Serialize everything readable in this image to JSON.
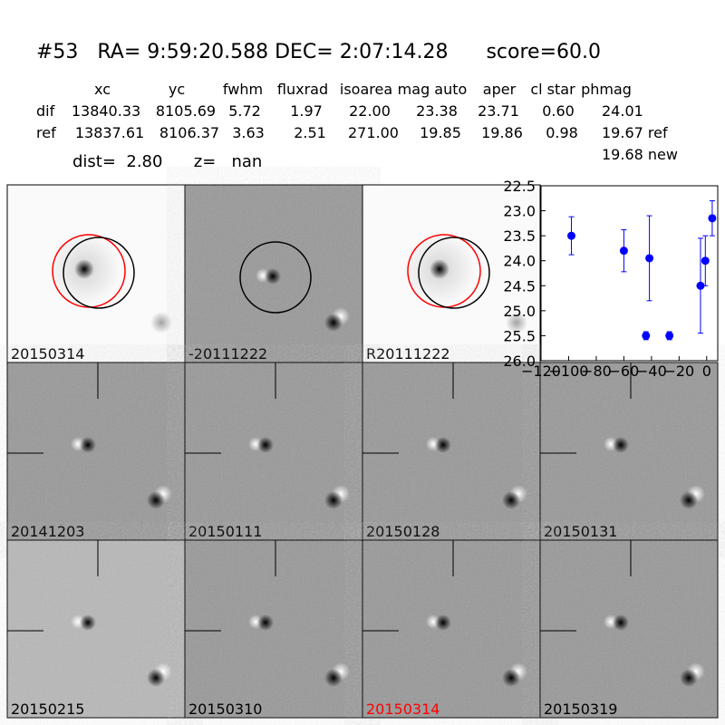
{
  "header": {
    "title": "#53   RA= 9:59:20.588 DEC= 2:07:14.28      score=60.0",
    "dist_line": "dist=  2.80      z=   nan"
  },
  "table": {
    "columns": [
      "xc",
      "yc",
      "fwhm",
      "fluxrad",
      "isoarea",
      "mag auto",
      "aper",
      "cl star",
      "phmag"
    ],
    "rows": [
      [
        "dif",
        "13840.33",
        "8105.69",
        "5.72",
        "1.97",
        "22.00",
        "23.38",
        "23.71",
        "0.60",
        "24.01"
      ],
      [
        "ref",
        "13837.61",
        "8106.37",
        "3.63",
        "2.51",
        "271.00",
        "19.85",
        "19.86",
        "0.98",
        "19.67 ref"
      ]
    ],
    "phmag_extra": "19.68 new"
  },
  "stamps": [
    {
      "label": "20150314",
      "color": "#000000"
    },
    {
      "label": "-20111222",
      "color": "#000000"
    },
    {
      "label": "R20111222",
      "color": "#000000"
    },
    {
      "label": "20141203",
      "color": "#000000"
    },
    {
      "label": "20150111",
      "color": "#000000"
    },
    {
      "label": "20150128",
      "color": "#000000"
    },
    {
      "label": "20150131",
      "color": "#000000"
    },
    {
      "label": "20150215",
      "color": "#000000"
    },
    {
      "label": "20150310",
      "color": "#000000"
    },
    {
      "label": "20150314",
      "color": "#ff0000"
    },
    {
      "label": "20150319",
      "color": "#000000"
    }
  ],
  "chart_data": {
    "type": "errorbar",
    "x": [
      -98,
      -60,
      -44,
      -41.5,
      -27,
      -4.5,
      -1,
      4
    ],
    "values": [
      23.5,
      23.8,
      25.5,
      23.95,
      25.5,
      24.5,
      24.0,
      23.15
    ],
    "errors": [
      0.38,
      0.42,
      0.08,
      0.85,
      0.08,
      0.95,
      0.5,
      0.35
    ],
    "color": "#0000ff",
    "xlim": [
      -120,
      8
    ],
    "ylim": [
      26.0,
      22.5
    ],
    "xticks": [
      {
        "value": -120,
        "label": "−120"
      },
      {
        "value": -100,
        "label": "−100"
      },
      {
        "value": -80,
        "label": "−80"
      },
      {
        "value": -60,
        "label": "−60"
      },
      {
        "value": -40,
        "label": "−40"
      },
      {
        "value": -20,
        "label": "−20"
      },
      0
    ],
    "yticks": [
      22.5,
      {
        "value": 23,
        "label": "23.0"
      },
      23.5,
      {
        "value": 24,
        "label": "24.0"
      },
      24.5,
      {
        "value": 25,
        "label": "25.0"
      },
      25.5,
      {
        "value": 26,
        "label": "26.0"
      }
    ]
  }
}
